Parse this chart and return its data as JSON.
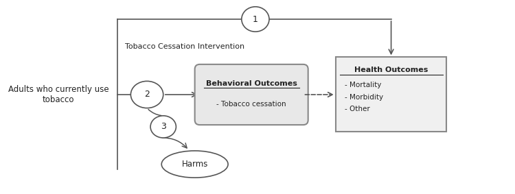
{
  "bg_color": "#ffffff",
  "fig_width": 7.5,
  "fig_height": 2.83,
  "dpi": 100,
  "left_text": "Adults who currently use\ntobacco",
  "intervention_label": "Tobacco Cessation Intervention",
  "circle1_label": "1",
  "circle2_label": "2",
  "circle3_label": "3",
  "behavioral_title": "Behavioral Outcomes",
  "behavioral_body": "- Tobacco cessation",
  "health_title": "Health Outcomes",
  "health_body": "- Mortality\n- Morbidity\n- Other",
  "harms_label": "Harms",
  "line_color": "#555555",
  "text_color": "#222222"
}
